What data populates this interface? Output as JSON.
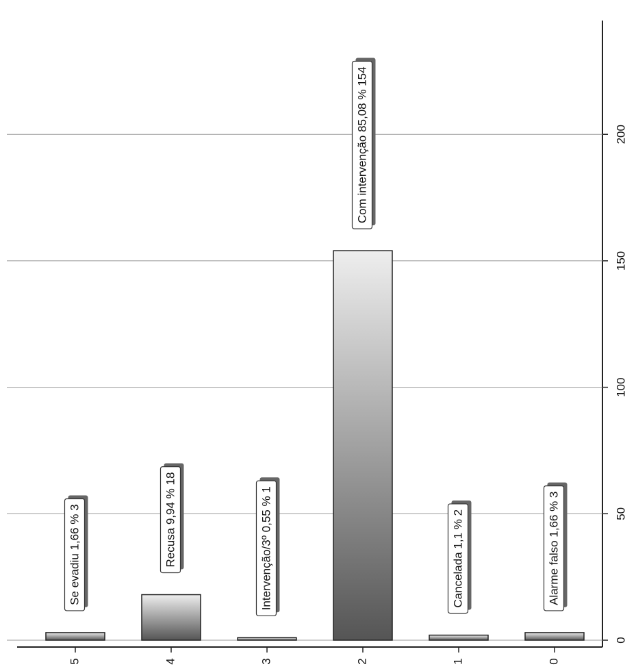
{
  "chart_data": {
    "type": "bar",
    "categories": [
      "5",
      "4",
      "3",
      "2",
      "1",
      "0"
    ],
    "values": [
      3,
      18,
      1,
      154,
      2,
      3
    ],
    "value_labels": [
      "Se evadiu 1,66 % 3",
      "Recusa 9,94 % 18",
      "Intervenção/3º 0,55 % 1",
      "Com intervenção 85,08 % 154",
      "Cancelada 1,1 % 2",
      "Alarme falso 1,66 % 3"
    ],
    "ylim": [
      0,
      245
    ],
    "yticks": [
      0,
      50,
      100,
      150,
      200
    ],
    "grid": true,
    "color": "#777777"
  }
}
